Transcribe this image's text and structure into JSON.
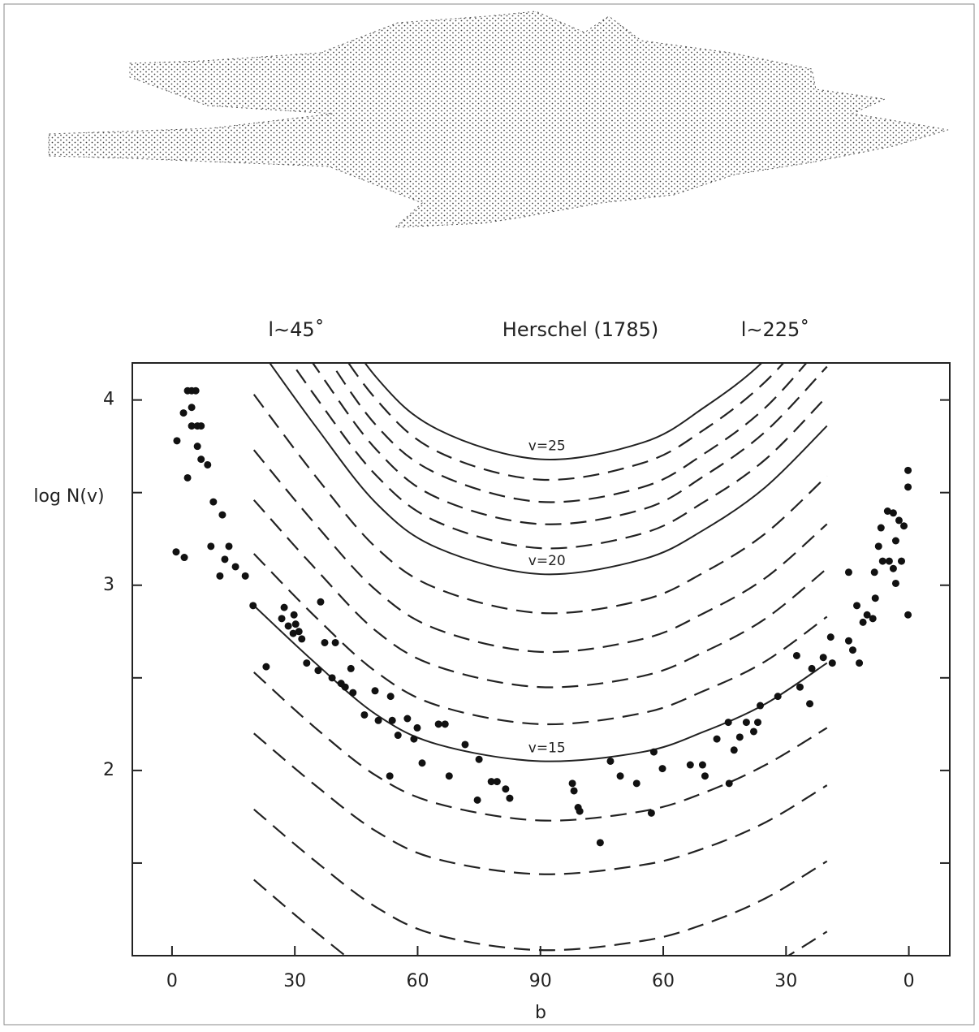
{
  "chart_data": {
    "type": "scatter",
    "title": "Herschel (1785)",
    "annotations": [
      "l∼45˚",
      "l∼225˚"
    ],
    "xlabel": "b",
    "ylabel": "log N(v)",
    "xlim": [
      -9.7,
      190
    ],
    "ylim": [
      1.0,
      4.2
    ],
    "xticks": [
      0,
      30,
      60,
      90,
      {
        "value": 120,
        "label": "60"
      },
      {
        "value": 150,
        "label": "30"
      },
      {
        "value": 180,
        "label": "0"
      }
    ],
    "yticks": [
      2,
      3,
      4
    ],
    "minor_yticks": [
      1.5,
      2.5,
      3.5
    ],
    "color": "#111111",
    "points": {
      "x": [
        1.2,
        2.8,
        3.8,
        4.8,
        5.8,
        4.8,
        4.8,
        6.2,
        7.1,
        6.2,
        7.1,
        8.7,
        3.8,
        1.0,
        3.0,
        10.1,
        12.3,
        9.5,
        11.7,
        12.9,
        13.9,
        15.5,
        17.9,
        19.8,
        23.0,
        27.4,
        26.8,
        28.4,
        29.8,
        30.2,
        31.0,
        31.7,
        29.6,
        32.9,
        36.3,
        35.7,
        37.3,
        39.9,
        39.1,
        41.3,
        42.3,
        43.7,
        44.2,
        47.0,
        49.6,
        50.4,
        53.4,
        53.8,
        55.2,
        57.5,
        59.9,
        59.1,
        61.1,
        65.1,
        66.7,
        67.7,
        71.6,
        75.0,
        74.6,
        78.0,
        79.4,
        81.5,
        82.5,
        53.2,
        97.8,
        98.2,
        99.2,
        99.6,
        104.6,
        107.1,
        109.5,
        113.5,
        117.1,
        117.7,
        119.8,
        126.6,
        129.6,
        130.2,
        133.1,
        135.9,
        136.1,
        137.3,
        138.7,
        140.3,
        142.1,
        143.1,
        143.7,
        148.0,
        152.6,
        153.4,
        155.8,
        156.3,
        159.1,
        161.3,
        160.9,
        165.3,
        165.3,
        166.3,
        167.3,
        167.9,
        168.8,
        169.8,
        171.6,
        171.8,
        172.6,
        173.2,
        173.6,
        174.8,
        175.2,
        176.2,
        176.2,
        176.8,
        177.6,
        178.2,
        178.8,
        179.8,
        179.8,
        179.8,
        176.8,
        171.2
      ],
      "values": [
        3.78,
        3.93,
        4.05,
        4.05,
        4.05,
        3.96,
        3.86,
        3.86,
        3.86,
        3.75,
        3.68,
        3.65,
        3.58,
        3.18,
        3.15,
        3.45,
        3.38,
        3.21,
        3.05,
        3.14,
        3.21,
        3.1,
        3.05,
        2.89,
        2.56,
        2.88,
        2.82,
        2.78,
        2.84,
        2.79,
        2.75,
        2.71,
        2.74,
        2.58,
        2.91,
        2.54,
        2.69,
        2.69,
        2.5,
        2.47,
        2.45,
        2.55,
        2.42,
        2.3,
        2.43,
        2.27,
        2.4,
        2.27,
        2.19,
        2.28,
        2.23,
        2.17,
        2.04,
        2.25,
        2.25,
        1.97,
        2.14,
        2.06,
        1.84,
        1.94,
        1.94,
        1.9,
        1.85,
        1.97,
        1.93,
        1.89,
        1.8,
        1.78,
        1.61,
        2.05,
        1.97,
        1.93,
        1.77,
        2.1,
        2.01,
        2.03,
        2.03,
        1.97,
        2.17,
        2.26,
        1.93,
        2.11,
        2.18,
        2.26,
        2.21,
        2.26,
        2.35,
        2.4,
        2.62,
        2.45,
        2.36,
        2.55,
        2.61,
        2.58,
        2.72,
        3.07,
        2.7,
        2.65,
        2.89,
        2.58,
        2.8,
        2.84,
        3.07,
        2.93,
        3.21,
        3.31,
        3.13,
        3.4,
        3.13,
        3.09,
        3.39,
        3.24,
        3.35,
        3.13,
        3.32,
        3.62,
        3.53,
        2.84,
        3.01,
        2.82
      ]
    },
    "curves": {
      "type": "line",
      "x": [
        20,
        35,
        50,
        65,
        90,
        115,
        130,
        145,
        160
      ],
      "series": [
        {
          "style": "dashed",
          "values": [
            1.41,
            1.13,
            0.88,
            0.73,
            0.65,
            0.7,
            0.79,
            0.93,
            1.13
          ]
        },
        {
          "style": "dashed",
          "values": [
            1.79,
            1.51,
            1.26,
            1.11,
            1.03,
            1.08,
            1.17,
            1.31,
            1.51
          ]
        },
        {
          "style": "dashed",
          "values": [
            2.2,
            1.92,
            1.67,
            1.52,
            1.44,
            1.49,
            1.58,
            1.72,
            1.92
          ]
        },
        {
          "style": "dashed",
          "values": [
            2.53,
            2.23,
            1.97,
            1.82,
            1.73,
            1.78,
            1.88,
            2.03,
            2.23
          ]
        },
        {
          "name": "v=15",
          "style": "solid",
          "values": [
            2.89,
            2.58,
            2.3,
            2.14,
            2.05,
            2.1,
            2.21,
            2.36,
            2.58
          ]
        },
        {
          "style": "dashed",
          "values": [
            3.17,
            2.83,
            2.53,
            2.35,
            2.25,
            2.31,
            2.43,
            2.59,
            2.83
          ]
        },
        {
          "style": "dashed",
          "values": [
            3.46,
            3.09,
            2.75,
            2.56,
            2.45,
            2.51,
            2.64,
            2.82,
            3.09
          ]
        },
        {
          "style": "dashed",
          "values": [
            3.73,
            3.33,
            2.97,
            2.76,
            2.64,
            2.71,
            2.85,
            3.04,
            3.33
          ]
        },
        {
          "style": "dashed",
          "values": [
            4.03,
            3.59,
            3.2,
            2.98,
            2.85,
            2.92,
            3.07,
            3.28,
            3.59
          ]
        },
        {
          "name": "v=20",
          "style": "solid",
          "values": [
            4.32,
            3.86,
            3.44,
            3.2,
            3.06,
            3.14,
            3.3,
            3.53,
            3.86
          ]
        },
        {
          "style": "dashed",
          "values": [
            4.5,
            4.02,
            3.59,
            3.34,
            3.2,
            3.28,
            3.45,
            3.68,
            4.02
          ]
        },
        {
          "style": "dashed",
          "values": [
            4.67,
            4.18,
            3.73,
            3.47,
            3.33,
            3.41,
            3.59,
            3.83,
            4.18
          ]
        },
        {
          "style": "dashed",
          "values": [
            4.84,
            4.33,
            3.86,
            3.6,
            3.45,
            3.53,
            3.71,
            3.96,
            4.33
          ]
        },
        {
          "style": "dashed",
          "values": [
            5.0,
            4.47,
            4.0,
            3.72,
            3.57,
            3.66,
            3.84,
            4.1,
            4.47
          ]
        },
        {
          "name": "v=25",
          "style": "solid",
          "values": [
            5.15,
            4.61,
            4.12,
            3.84,
            3.68,
            3.77,
            3.96,
            4.22,
            4.61
          ]
        }
      ]
    }
  }
}
